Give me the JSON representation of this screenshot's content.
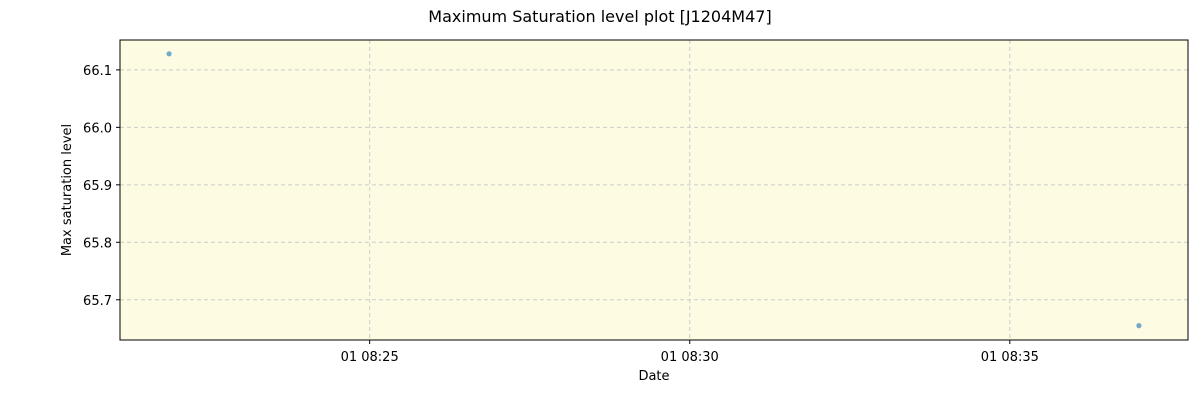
{
  "chart_data": {
    "type": "scatter",
    "title": "Maximum Saturation level plot [J1204M47]",
    "xlabel": "Date",
    "ylabel": "Max saturation level",
    "x_day": "01",
    "xlim": [
      "08:21:06",
      "08:37:47"
    ],
    "ylim": [
      65.63,
      66.152
    ],
    "xticks": [
      {
        "time": "08:25:00",
        "label": "01 08:25"
      },
      {
        "time": "08:30:00",
        "label": "01 08:30"
      },
      {
        "time": "08:35:00",
        "label": "01 08:35"
      }
    ],
    "yticks": [
      {
        "value": 65.7,
        "label": "65.7"
      },
      {
        "value": 65.8,
        "label": "65.8"
      },
      {
        "value": 65.9,
        "label": "65.9"
      },
      {
        "value": 66.0,
        "label": "66.0"
      },
      {
        "value": 66.1,
        "label": "66.1"
      }
    ],
    "points": [
      {
        "x": "08:21:52",
        "y": 66.128
      },
      {
        "x": "08:37:01",
        "y": 65.655
      }
    ],
    "grid": true,
    "legend": "none",
    "colors": {
      "background": "#fdfbe2",
      "point": "#5b9bc8",
      "grid": "#cccccc"
    }
  }
}
